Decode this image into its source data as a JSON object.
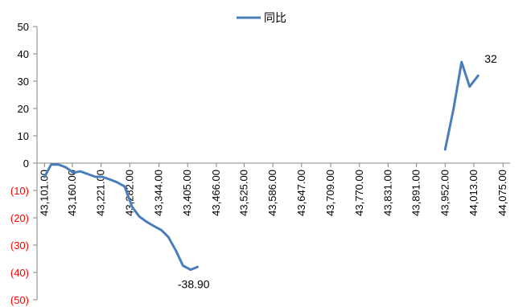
{
  "chart_data": {
    "type": "line",
    "legend": {
      "position": "top-center",
      "entries": [
        "同比"
      ]
    },
    "series": [
      {
        "name": "同比",
        "color": "#4a7ebb",
        "segments": [
          [
            [
              43101,
              -5
            ],
            [
              43115,
              -0.5
            ],
            [
              43130,
              -0.5
            ],
            [
              43146,
              -1.5
            ],
            [
              43162,
              -3.5
            ],
            [
              43177,
              -3
            ],
            [
              43193,
              -4
            ],
            [
              43209,
              -5
            ],
            [
              43224,
              -5
            ],
            [
              43240,
              -6
            ],
            [
              43255,
              -7
            ],
            [
              43271,
              -8.5
            ],
            [
              43287,
              -16
            ],
            [
              43302,
              -19.5
            ],
            [
              43318,
              -21.5
            ],
            [
              43333,
              -23
            ],
            [
              43349,
              -24.5
            ],
            [
              43364,
              -27
            ],
            [
              43380,
              -32
            ],
            [
              43395,
              -37.5
            ],
            [
              43411,
              -39
            ],
            [
              43426,
              -38
            ]
          ],
          [
            [
              43952,
              5
            ],
            [
              43970,
              20
            ],
            [
              43987,
              37
            ],
            [
              44004,
              28
            ],
            [
              44022,
              32
            ]
          ]
        ]
      }
    ],
    "data_labels": [
      {
        "x": 43411,
        "y": -38.9,
        "text": "-38.90"
      },
      {
        "x": 44022,
        "y": 32,
        "text": "32"
      }
    ],
    "xaxis": {
      "min": 43085,
      "max": 44090,
      "tick_values": [
        43101,
        43160,
        43221,
        43282,
        43344,
        43405,
        43466,
        43525,
        43586,
        43647,
        43709,
        43770,
        43831,
        43891,
        43952,
        44013,
        44075
      ],
      "tick_labels": [
        "43,101.00",
        "43,160.00",
        "43,221.00",
        "43,282.00",
        "43,344.00",
        "43,405.00",
        "43,466.00",
        "43,525.00",
        "43,586.00",
        "43,647.00",
        "43,709.00",
        "43,770.00",
        "43,831.00",
        "43,891.00",
        "43,952.00",
        "44,013.00",
        "44,075.00"
      ]
    },
    "yaxis": {
      "min": -50,
      "max": 50,
      "tick_values": [
        50,
        40,
        30,
        20,
        10,
        0,
        -10,
        -20,
        -30,
        -40,
        -50
      ],
      "tick_labels": [
        "50",
        "40",
        "30",
        "20",
        "10",
        "0",
        "(10)",
        "(20)",
        "(30)",
        "(40)",
        "(50)"
      ],
      "negative_label_color": "#ff0000"
    },
    "grid": false
  }
}
